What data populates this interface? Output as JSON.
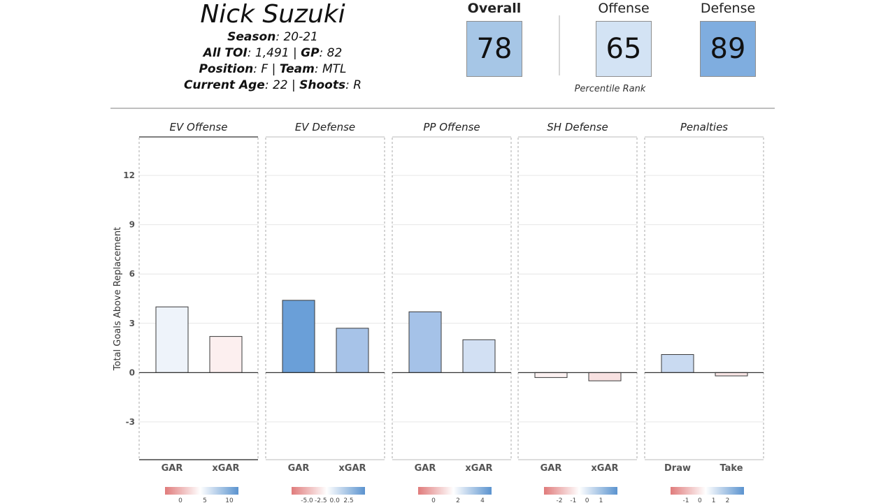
{
  "player": {
    "name": "Nick Suzuki",
    "season_label": "Season",
    "season": ": 20-21",
    "toi_label": "All TOI",
    "toi": ": 1,491 | ",
    "gp_label": "GP",
    "gp": ": 82",
    "position_label": "Position",
    "position": ": F | ",
    "team_label": "Team",
    "team": ": MTL",
    "age_label": "Current Age",
    "age": ": 22 | ",
    "shoots_label": "Shoots",
    "shoots": ": R"
  },
  "scores": {
    "overall_label": "Overall",
    "overall": "78",
    "overall_color": "#a6c6e6",
    "offense_label": "Offense",
    "offense": "65",
    "offense_color": "#d3e3f4",
    "defense_label": "Defense",
    "defense": "89",
    "defense_color": "#7faddf",
    "percentile_label": "Percentile Rank"
  },
  "chart_data": {
    "type": "bar",
    "ylabel": "Total Goals Above Replacement",
    "ylim": [
      -5.3,
      14.3
    ],
    "yticks": [
      -3,
      0,
      3,
      6,
      9,
      12
    ],
    "grid": true,
    "panels": [
      {
        "title": "EV Offense",
        "categories": [
          "GAR",
          "xGAR"
        ],
        "values": [
          4.0,
          2.2
        ],
        "colors": [
          "#eef3fa",
          "#fcefef"
        ],
        "legend_ticks": [
          "0",
          "5",
          "10"
        ]
      },
      {
        "title": "EV Defense",
        "categories": [
          "GAR",
          "xGAR"
        ],
        "values": [
          4.4,
          2.7
        ],
        "colors": [
          "#6a9fd8",
          "#a7c3e8"
        ],
        "legend_ticks": [
          "-5.0",
          "-2.5",
          "0.0",
          "2.5"
        ]
      },
      {
        "title": "PP Offense",
        "categories": [
          "GAR",
          "xGAR"
        ],
        "values": [
          3.7,
          2.0
        ],
        "colors": [
          "#a5c2e8",
          "#d2e0f3"
        ],
        "legend_ticks": [
          "0",
          "2",
          "4"
        ]
      },
      {
        "title": "SH Defense",
        "categories": [
          "GAR",
          "xGAR"
        ],
        "values": [
          -0.3,
          -0.5
        ],
        "colors": [
          "#fcf1f1",
          "#f8e1e1"
        ],
        "legend_ticks": [
          "-2",
          "-1",
          "0",
          "1"
        ]
      },
      {
        "title": "Penalties",
        "categories": [
          "Draw",
          "Take"
        ],
        "values": [
          1.1,
          -0.2
        ],
        "colors": [
          "#c9daf1",
          "#f9e6e6"
        ],
        "legend_ticks": [
          "-1",
          "0",
          "1",
          "2"
        ]
      }
    ]
  }
}
